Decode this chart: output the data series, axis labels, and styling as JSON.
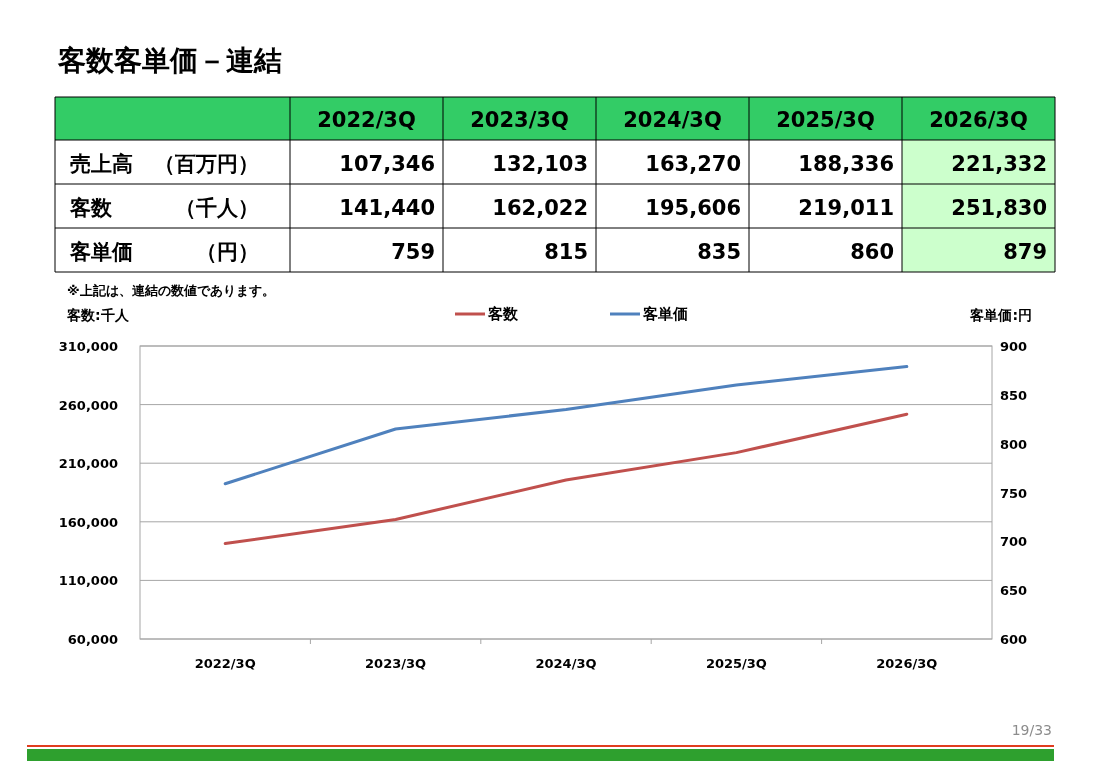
{
  "chart_data": [
    {
      "type": "other",
      "title": "客数客単価－連結",
      "categories": [
        "2022/3Q",
        "2023/3Q",
        "2024/3Q",
        "2025/3Q",
        "2026/3Q"
      ],
      "series": [
        {
          "name": "売上高　（百万円）",
          "values": [
            107346,
            132103,
            163270,
            188336,
            221332
          ],
          "value_labels": [
            "107,346",
            "132,103",
            "163,270",
            "188,336",
            "221,332"
          ]
        },
        {
          "name": "客数　　　（千人）",
          "values": [
            141440,
            162022,
            195606,
            219011,
            251830
          ],
          "value_labels": [
            "141,440",
            "162,022",
            "195,606",
            "219,011",
            "251,830"
          ]
        },
        {
          "name": "客単価　　　（円）",
          "values": [
            759,
            815,
            835,
            860,
            879
          ],
          "value_labels": [
            "759",
            "815",
            "835",
            "860",
            "879"
          ]
        }
      ],
      "annotations": [
        "※上記は、連結の数値であります。"
      ]
    },
    {
      "type": "line",
      "categories": [
        "2022/3Q",
        "2023/3Q",
        "2024/3Q",
        "2025/3Q",
        "2026/3Q"
      ],
      "series": [
        {
          "name": "客数",
          "color": "#c0504d",
          "values": [
            141440,
            162022,
            195606,
            219011,
            251830
          ]
        },
        {
          "name": "客単価",
          "color": "#4f81bd",
          "axis": "y2",
          "values": [
            759,
            815,
            835,
            860,
            879
          ]
        }
      ],
      "ylabel": "客数:千人",
      "y2label": "客単価:円",
      "ylim": [
        60000,
        310000
      ],
      "yticks": [
        {
          "value": 60000,
          "label": "60,000"
        },
        {
          "value": 110000,
          "label": "110,000"
        },
        {
          "value": 160000,
          "label": "160,000"
        },
        {
          "value": 210000,
          "label": "210,000"
        },
        {
          "value": 260000,
          "label": "260,000"
        },
        {
          "value": 310000,
          "label": "310,000"
        }
      ],
      "y2lim": [
        600,
        900
      ],
      "y2ticks": [
        600,
        650,
        700,
        750,
        800,
        850,
        900
      ],
      "grid": "y",
      "legend": "top",
      "marker": "none",
      "annotations": [
        "19/33"
      ]
    }
  ]
}
